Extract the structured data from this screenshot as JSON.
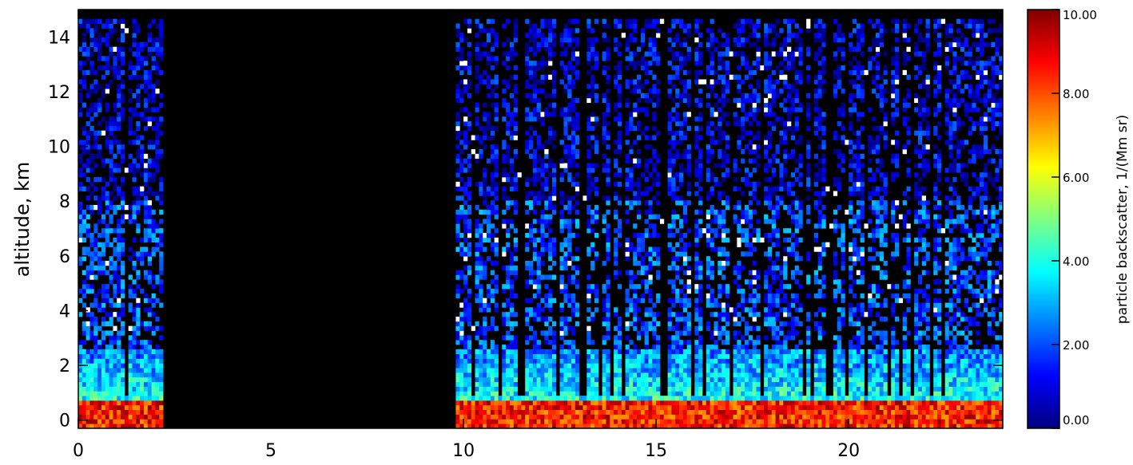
{
  "chart_data": {
    "type": "heatmap",
    "title": "",
    "xlabel": "",
    "ylabel": "altitude, km",
    "xlim": [
      0,
      24
    ],
    "ylim": [
      -0.3,
      15
    ],
    "x_ticks": [
      0,
      5,
      10,
      15,
      20
    ],
    "y_ticks": [
      0,
      2,
      4,
      6,
      8,
      10,
      12,
      14
    ],
    "colorbar": {
      "label": "particle backscatter, 1/(Mm sr)",
      "range": [
        0,
        10
      ],
      "ticks": [
        "0.00",
        "2.00",
        "4.00",
        "6.00",
        "8.00",
        "10.00"
      ],
      "colors": [
        "#00007f",
        "#0000ff",
        "#0080ff",
        "#00ffff",
        "#80ff80",
        "#ffff00",
        "#ff8000",
        "#ff0000",
        "#7f0000"
      ]
    },
    "no_data_intervals_hours": [
      [
        2.25,
        9.8
      ]
    ],
    "description_of_field": {
      "surface_layer_km": [
        0,
        0.6
      ],
      "surface_layer_backscatter": 8.5,
      "boundary_layer_km": [
        0.6,
        2.5
      ],
      "boundary_layer_backscatter": 4.0,
      "mid_troposphere_backscatter": 2.0,
      "upper_troposphere_backscatter": 1.0
    }
  }
}
